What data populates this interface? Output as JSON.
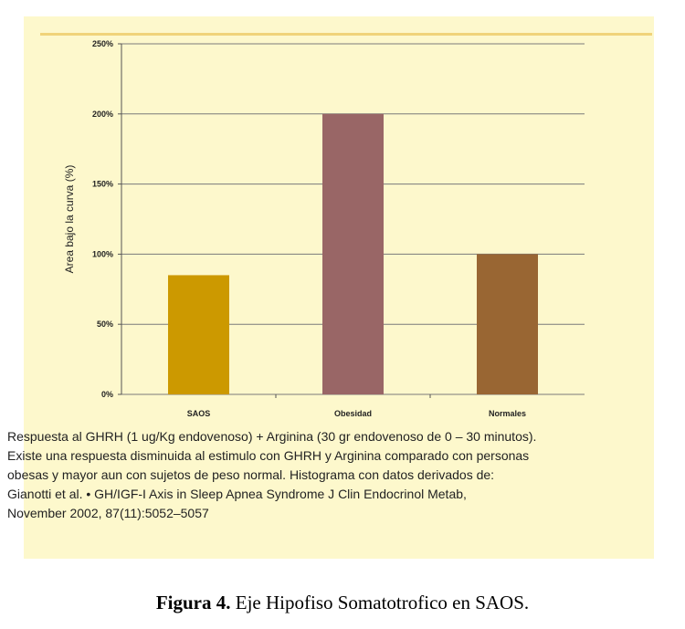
{
  "chart_data": {
    "type": "bar",
    "categories": [
      "SAOS",
      "Obesidad",
      "Normales"
    ],
    "values": [
      85,
      200,
      100
    ],
    "ylabel": "Area bajo la curva (%)",
    "xlabel": "",
    "ylim": [
      0,
      250
    ],
    "yticks": [
      0,
      50,
      100,
      150,
      200,
      250
    ],
    "ytick_labels": [
      "0%",
      "50%",
      "100%",
      "150%",
      "200%",
      "250%"
    ],
    "colors": [
      "#cc9900",
      "#996666",
      "#996633"
    ],
    "grid": true,
    "legend": "none"
  },
  "note_lines": [
    "Respuesta al GHRH (1 ug/Kg endovenoso) + Arginina (30 gr endovenoso de 0 – 30 minutos).",
    "Existe una respuesta disminuida al estimulo con GHRH y Arginina comparado con personas",
    "obesas y mayor aun con sujetos de peso normal. Histograma con datos derivados de:",
    "Gianotti et al. • GH/IGF-I Axis in Sleep Apnea Syndrome J Clin Endocrinol Metab,",
    "November 2002, 87(11):5052–5057"
  ],
  "figure_caption": {
    "label": "Figura 4.",
    "text": "Eje Hipofiso Somatotrofico en SAOS."
  }
}
